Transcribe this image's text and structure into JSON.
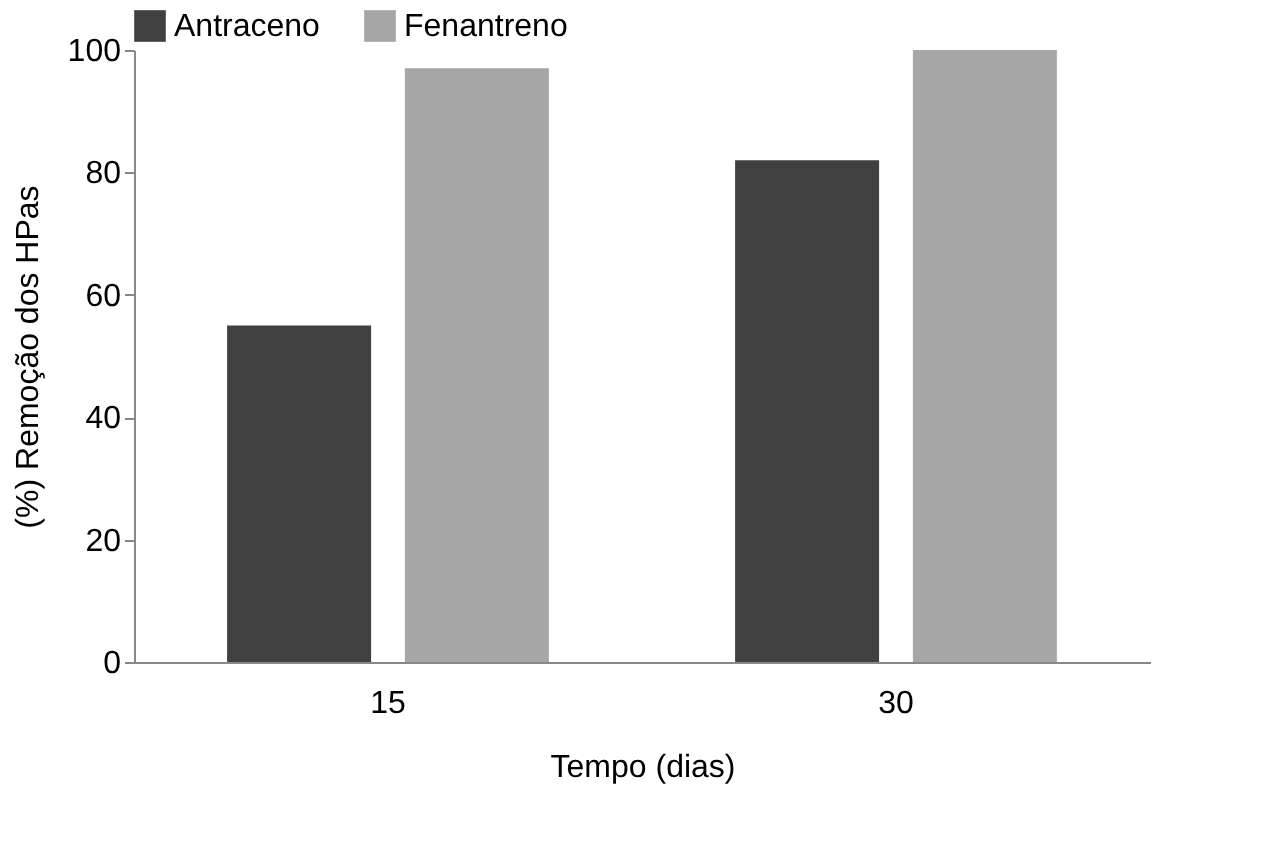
{
  "chart_data": {
    "type": "bar",
    "categories": [
      "15",
      "30"
    ],
    "series": [
      {
        "name": "Antraceno",
        "color": "#404040",
        "values": [
          55,
          82
        ]
      },
      {
        "name": "Fenantreno",
        "color": "#a6a6a6",
        "values": [
          97,
          100
        ]
      }
    ],
    "xlabel": "Tempo (dias)",
    "ylabel": "(%) Remoção dos HPas",
    "ylim": [
      0,
      100
    ],
    "yticks": [
      0,
      20,
      40,
      60,
      80,
      100
    ],
    "grid": false,
    "legend": "top"
  }
}
